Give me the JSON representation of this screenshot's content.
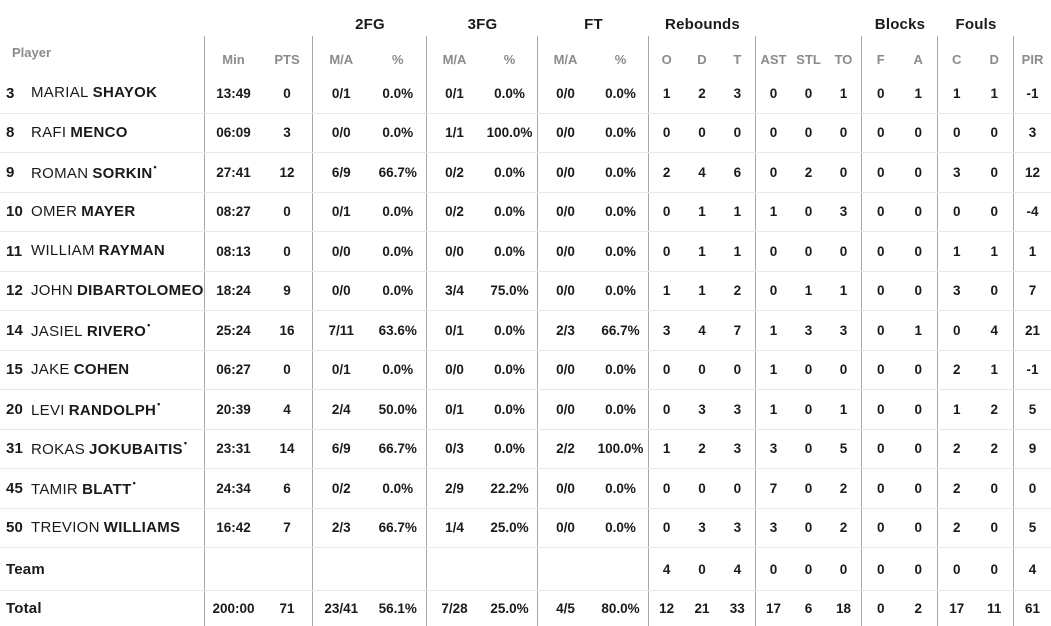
{
  "table": {
    "header": {
      "player_label": "Player",
      "group_labels": {
        "fg2": "2FG",
        "fg3": "3FG",
        "ft": "FT",
        "rebounds": "Rebounds",
        "blocks": "Blocks",
        "fouls": "Fouls"
      },
      "columns": [
        "Min",
        "PTS",
        "M/A",
        "%",
        "M/A",
        "%",
        "M/A",
        "%",
        "O",
        "D",
        "T",
        "AST",
        "STL",
        "TO",
        "F",
        "A",
        "C",
        "D",
        "PIR"
      ]
    },
    "starter_marker": "•",
    "rows": [
      {
        "number": "3",
        "first": "MARIAL",
        "last": "SHAYOK",
        "starter": false,
        "stats": [
          "13:49",
          "0",
          "0/1",
          "0.0%",
          "0/1",
          "0.0%",
          "0/0",
          "0.0%",
          "1",
          "2",
          "3",
          "0",
          "0",
          "1",
          "0",
          "1",
          "1",
          "1",
          "-1"
        ]
      },
      {
        "number": "8",
        "first": "RAFI",
        "last": "MENCO",
        "starter": false,
        "stats": [
          "06:09",
          "3",
          "0/0",
          "0.0%",
          "1/1",
          "100.0%",
          "0/0",
          "0.0%",
          "0",
          "0",
          "0",
          "0",
          "0",
          "0",
          "0",
          "0",
          "0",
          "0",
          "3"
        ]
      },
      {
        "number": "9",
        "first": "ROMAN",
        "last": "SORKIN",
        "starter": true,
        "stats": [
          "27:41",
          "12",
          "6/9",
          "66.7%",
          "0/2",
          "0.0%",
          "0/0",
          "0.0%",
          "2",
          "4",
          "6",
          "0",
          "2",
          "0",
          "0",
          "0",
          "3",
          "0",
          "12"
        ]
      },
      {
        "number": "10",
        "first": "OMER",
        "last": "MAYER",
        "starter": false,
        "stats": [
          "08:27",
          "0",
          "0/1",
          "0.0%",
          "0/2",
          "0.0%",
          "0/0",
          "0.0%",
          "0",
          "1",
          "1",
          "1",
          "0",
          "3",
          "0",
          "0",
          "0",
          "0",
          "-4"
        ]
      },
      {
        "number": "11",
        "first": "WILLIAM",
        "last": "RAYMAN",
        "starter": false,
        "stats": [
          "08:13",
          "0",
          "0/0",
          "0.0%",
          "0/0",
          "0.0%",
          "0/0",
          "0.0%",
          "0",
          "1",
          "1",
          "0",
          "0",
          "0",
          "0",
          "0",
          "1",
          "1",
          "1"
        ]
      },
      {
        "number": "12",
        "first": "JOHN",
        "last": "DIBARTOLOMEO",
        "starter": false,
        "stats": [
          "18:24",
          "9",
          "0/0",
          "0.0%",
          "3/4",
          "75.0%",
          "0/0",
          "0.0%",
          "1",
          "1",
          "2",
          "0",
          "1",
          "1",
          "0",
          "0",
          "3",
          "0",
          "7"
        ]
      },
      {
        "number": "14",
        "first": "JASIEL",
        "last": "RIVERO",
        "starter": true,
        "stats": [
          "25:24",
          "16",
          "7/11",
          "63.6%",
          "0/1",
          "0.0%",
          "2/3",
          "66.7%",
          "3",
          "4",
          "7",
          "1",
          "3",
          "3",
          "0",
          "1",
          "0",
          "4",
          "21"
        ]
      },
      {
        "number": "15",
        "first": "JAKE",
        "last": "COHEN",
        "starter": false,
        "stats": [
          "06:27",
          "0",
          "0/1",
          "0.0%",
          "0/0",
          "0.0%",
          "0/0",
          "0.0%",
          "0",
          "0",
          "0",
          "1",
          "0",
          "0",
          "0",
          "0",
          "2",
          "1",
          "-1"
        ]
      },
      {
        "number": "20",
        "first": "LEVI",
        "last": "RANDOLPH",
        "starter": true,
        "stats": [
          "20:39",
          "4",
          "2/4",
          "50.0%",
          "0/1",
          "0.0%",
          "0/0",
          "0.0%",
          "0",
          "3",
          "3",
          "1",
          "0",
          "1",
          "0",
          "0",
          "1",
          "2",
          "5"
        ]
      },
      {
        "number": "31",
        "first": "ROKAS",
        "last": "JOKUBAITIS",
        "starter": true,
        "stats": [
          "23:31",
          "14",
          "6/9",
          "66.7%",
          "0/3",
          "0.0%",
          "2/2",
          "100.0%",
          "1",
          "2",
          "3",
          "3",
          "0",
          "5",
          "0",
          "0",
          "2",
          "2",
          "9"
        ]
      },
      {
        "number": "45",
        "first": "TAMIR",
        "last": "BLATT",
        "starter": true,
        "stats": [
          "24:34",
          "6",
          "0/2",
          "0.0%",
          "2/9",
          "22.2%",
          "0/0",
          "0.0%",
          "0",
          "0",
          "0",
          "7",
          "0",
          "2",
          "0",
          "0",
          "2",
          "0",
          "0"
        ]
      },
      {
        "number": "50",
        "first": "TREVION",
        "last": "WILLIAMS",
        "starter": false,
        "stats": [
          "16:42",
          "7",
          "2/3",
          "66.7%",
          "1/4",
          "25.0%",
          "0/0",
          "0.0%",
          "0",
          "3",
          "3",
          "3",
          "0",
          "2",
          "0",
          "0",
          "2",
          "0",
          "5"
        ]
      }
    ],
    "summary_rows": [
      {
        "label": "Team",
        "stats": [
          "",
          "",
          "",
          "",
          "",
          "",
          "",
          "",
          "4",
          "0",
          "4",
          "0",
          "0",
          "0",
          "0",
          "0",
          "0",
          "0",
          "4"
        ]
      },
      {
        "label": "Total",
        "stats": [
          "200:00",
          "71",
          "23/41",
          "56.1%",
          "7/28",
          "25.0%",
          "4/5",
          "80.0%",
          "12",
          "21",
          "33",
          "17",
          "6",
          "18",
          "0",
          "2",
          "17",
          "11",
          "61"
        ]
      }
    ],
    "colors": {
      "text": "#1a1a1e",
      "muted": "#8b8b8e",
      "divider": "#a6a6a9",
      "row_line": "#e7e7e9",
      "background": "#ffffff"
    }
  }
}
